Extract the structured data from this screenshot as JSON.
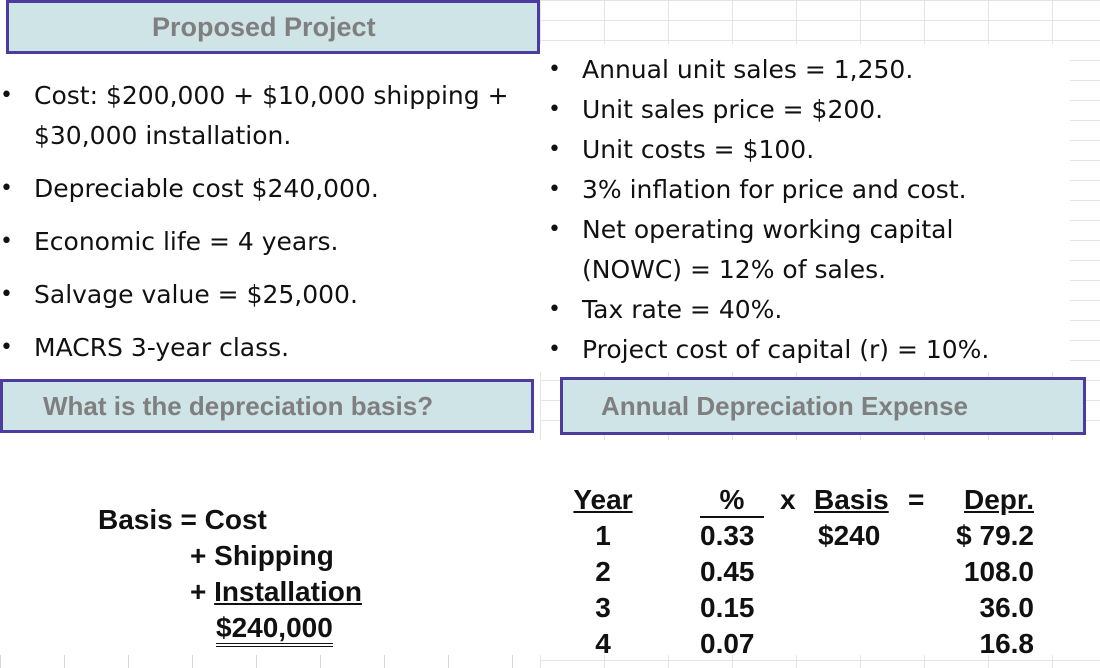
{
  "proposed_project": {
    "title": "Proposed Project",
    "items": [
      {
        "lines": [
          "Cost: $200,000 + $10,000 shipping +",
          "$30,000 installation."
        ]
      },
      {
        "lines": [
          "Depreciable cost $240,000."
        ]
      },
      {
        "lines": [
          "Economic life = 4 years."
        ]
      },
      {
        "lines": [
          "Salvage value = $25,000."
        ]
      },
      {
        "lines": [
          "MACRS 3-year class."
        ]
      }
    ]
  },
  "assumptions": {
    "items": [
      {
        "lines": [
          "Annual unit sales = 1,250."
        ]
      },
      {
        "lines": [
          "Unit sales price = $200."
        ]
      },
      {
        "lines": [
          "Unit costs = $100."
        ]
      },
      {
        "lines": [
          "3% inflation for price and cost."
        ]
      },
      {
        "lines": [
          "Net operating working capital",
          "(NOWC) = 12% of sales."
        ]
      },
      {
        "lines": [
          "Tax rate = 40%."
        ]
      },
      {
        "lines": [
          "Project cost of capital (r) = 10%."
        ]
      }
    ]
  },
  "basis_section": {
    "title": "What is the depreciation basis?",
    "line1": "Basis = Cost",
    "plus": "+ ",
    "shipping": "Shipping",
    "installation": "Installation",
    "total": "$240,000"
  },
  "depreciation_section": {
    "title": "Annual Depreciation Expense",
    "headers": {
      "year": "Year",
      "pct": "%",
      "x": "x",
      "basis": "Basis",
      "eq": "=",
      "depr": "Depr."
    },
    "basis_value": "$240",
    "rows": [
      {
        "year": "1",
        "pct": "0.33",
        "depr": "$ 79.2"
      },
      {
        "year": "2",
        "pct": "0.45",
        "depr": "108.0"
      },
      {
        "year": "3",
        "pct": "0.15",
        "depr": "36.0"
      },
      {
        "year": "4",
        "pct": "0.07",
        "depr": "16.8"
      }
    ]
  }
}
